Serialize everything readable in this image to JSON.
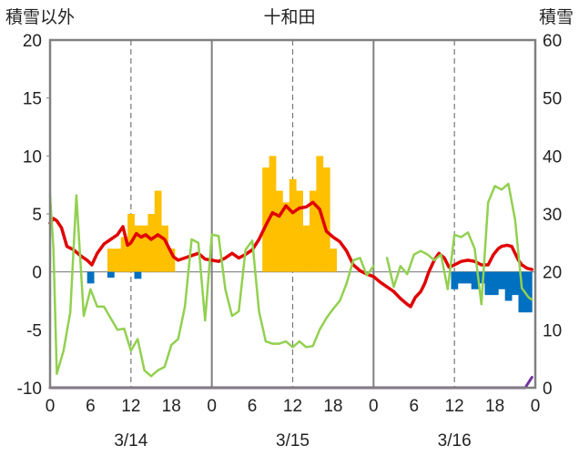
{
  "chart_data": {
    "type": "bar",
    "title": "十和田",
    "y_left_label": "積雪以外",
    "y_right_label": "積雪",
    "y_left_ticks": [
      "20",
      "15",
      "10",
      "5",
      "0",
      "-5",
      "-10"
    ],
    "y_right_ticks": [
      "60",
      "50",
      "40",
      "30",
      "20",
      "10",
      "0"
    ],
    "x_tick_labels": [
      "0",
      "6",
      "12",
      "18",
      "0",
      "6",
      "12",
      "18",
      "0",
      "6",
      "12",
      "18",
      "0"
    ],
    "date_labels": [
      "3/14",
      "3/15",
      "3/16"
    ],
    "ylim_left": [
      -10,
      20
    ],
    "ylim_right": [
      0,
      60
    ],
    "x_range_hours": [
      0,
      72
    ],
    "grid": "dashed vertical at 12h, solid vertical at day boundaries",
    "colors": {
      "snowfall_bars": "#FFC000",
      "depth_change_bars": "#0070C0",
      "temperature_line": "#E00000",
      "humidity_line": "#92D050",
      "snow_depth_line": "#7030A0",
      "frame": "#808080"
    },
    "series": [
      {
        "kind": "bar",
        "axis": "left",
        "color": "#FFC000",
        "points": [
          [
            9,
            2
          ],
          [
            10,
            2
          ],
          [
            11,
            3
          ],
          [
            12,
            5
          ],
          [
            13,
            4
          ],
          [
            14,
            4
          ],
          [
            15,
            5
          ],
          [
            16,
            7
          ],
          [
            17,
            4
          ],
          [
            18,
            2
          ],
          [
            32,
            9
          ],
          [
            33,
            10
          ],
          [
            34,
            7
          ],
          [
            35,
            6
          ],
          [
            36,
            8
          ],
          [
            37,
            7
          ],
          [
            38,
            4
          ],
          [
            39,
            7
          ],
          [
            40,
            10
          ],
          [
            41,
            9
          ],
          [
            42,
            2
          ]
        ]
      },
      {
        "kind": "bar",
        "axis": "left",
        "color": "#0070C0",
        "points": [
          [
            6,
            -1
          ],
          [
            9,
            -0.5
          ],
          [
            13,
            -0.6
          ],
          [
            60,
            -1.5
          ],
          [
            61,
            -1
          ],
          [
            62,
            -1
          ],
          [
            63,
            -1.5
          ],
          [
            64,
            -1
          ],
          [
            65,
            -2
          ],
          [
            66,
            -2
          ],
          [
            67,
            -1.5
          ],
          [
            68,
            -2.5
          ],
          [
            69,
            -2
          ],
          [
            70,
            -3.5
          ],
          [
            71,
            -3.5
          ]
        ]
      },
      {
        "kind": "line",
        "axis": "left",
        "color": "#E00000",
        "points": [
          [
            0,
            4.2
          ],
          [
            0.5,
            4.6
          ],
          [
            1,
            4.4
          ],
          [
            1.7,
            3.8
          ],
          [
            2.5,
            2.2
          ],
          [
            3.5,
            1.9
          ],
          [
            4.5,
            1.4
          ],
          [
            5.5,
            1.0
          ],
          [
            6.2,
            0.6
          ],
          [
            7,
            1.6
          ],
          [
            8,
            2.4
          ],
          [
            9,
            2.8
          ],
          [
            10,
            3.2
          ],
          [
            10.8,
            3.9
          ],
          [
            11.5,
            2.3
          ],
          [
            12,
            2.5
          ],
          [
            12.8,
            3.3
          ],
          [
            13.5,
            3.0
          ],
          [
            14.2,
            3.2
          ],
          [
            15,
            2.8
          ],
          [
            16,
            3.2
          ],
          [
            17,
            2.8
          ],
          [
            17.6,
            2.1
          ],
          [
            18.3,
            1.3
          ],
          [
            19,
            1.0
          ],
          [
            20,
            1.2
          ],
          [
            21,
            1.4
          ],
          [
            22,
            1.6
          ],
          [
            23,
            1.1
          ],
          [
            24,
            1.0
          ],
          [
            25,
            0.9
          ],
          [
            26,
            1.2
          ],
          [
            27,
            1.6
          ],
          [
            28,
            1.2
          ],
          [
            29,
            1.5
          ],
          [
            30,
            1.9
          ],
          [
            31,
            2.8
          ],
          [
            32,
            4.0
          ],
          [
            33,
            5.1
          ],
          [
            34,
            4.8
          ],
          [
            35,
            5.7
          ],
          [
            36,
            5.1
          ],
          [
            37,
            5.5
          ],
          [
            38,
            5.6
          ],
          [
            39,
            6.0
          ],
          [
            40,
            5.4
          ],
          [
            41,
            3.5
          ],
          [
            42,
            3.0
          ],
          [
            43,
            2.6
          ],
          [
            44,
            1.8
          ],
          [
            45,
            0.6
          ],
          [
            46,
            0.1
          ],
          [
            47,
            -0.2
          ],
          [
            48,
            -0.4
          ],
          [
            49,
            -0.9
          ],
          [
            50,
            -1.3
          ],
          [
            51,
            -1.7
          ],
          [
            52,
            -2.3
          ],
          [
            53,
            -2.8
          ],
          [
            53.5,
            -3.0
          ],
          [
            54.2,
            -2.2
          ],
          [
            55,
            -1.7
          ],
          [
            55.6,
            -1.0
          ],
          [
            56.2,
            0.0
          ],
          [
            57,
            1.0
          ],
          [
            57.7,
            1.6
          ],
          [
            58.5,
            1.2
          ],
          [
            59.2,
            0.4
          ],
          [
            60,
            0.6
          ],
          [
            61,
            0.9
          ],
          [
            62,
            1.0
          ],
          [
            63,
            0.9
          ],
          [
            64,
            0.6
          ],
          [
            65,
            0.6
          ],
          [
            65.8,
            1.5
          ],
          [
            66.5,
            2.0
          ],
          [
            67,
            2.2
          ],
          [
            67.8,
            2.3
          ],
          [
            68.5,
            2.2
          ],
          [
            69,
            1.6
          ],
          [
            69.5,
            1.0
          ],
          [
            70,
            0.6
          ],
          [
            70.8,
            0.3
          ],
          [
            71.5,
            0.2
          ]
        ]
      },
      {
        "kind": "line",
        "axis": "left",
        "color": "#92D050",
        "points": [
          [
            0,
            6.6
          ],
          [
            0.5,
            2.0
          ],
          [
            1,
            -8.8
          ],
          [
            2,
            -6.8
          ],
          [
            3,
            -3.5
          ],
          [
            3.9,
            6.6
          ],
          [
            5,
            -3.8
          ],
          [
            6,
            -1.5
          ],
          [
            7,
            -3.0
          ],
          [
            8,
            -3.0
          ],
          [
            9,
            -4.0
          ],
          [
            10,
            -5.0
          ],
          [
            11,
            -4.9
          ],
          [
            12,
            -6.8
          ],
          [
            13,
            -5.8
          ],
          [
            14,
            -8.5
          ],
          [
            15,
            -9.0
          ],
          [
            16,
            -8.5
          ],
          [
            17,
            -8.2
          ],
          [
            18,
            -6.3
          ],
          [
            19,
            -5.8
          ],
          [
            20,
            -3.0
          ],
          [
            21,
            2.8
          ],
          [
            22,
            2.5
          ],
          [
            23,
            -4.2
          ],
          [
            24,
            3.2
          ],
          [
            25,
            3.1
          ],
          [
            26,
            -1.5
          ],
          [
            27,
            -3.8
          ],
          [
            28,
            -3.4
          ],
          [
            29,
            1.9
          ],
          [
            30,
            2.7
          ],
          [
            31,
            -3.4
          ],
          [
            32,
            -6.0
          ],
          [
            33,
            -6.2
          ],
          [
            34,
            -6.2
          ],
          [
            35,
            -6.0
          ],
          [
            36,
            -6.5
          ],
          [
            37,
            -6.0
          ],
          [
            38,
            -6.5
          ],
          [
            39,
            -6.4
          ],
          [
            40,
            -5.0
          ],
          [
            41,
            -4.0
          ],
          [
            42,
            -3.2
          ],
          [
            43,
            -2.5
          ],
          [
            44,
            -1.0
          ],
          [
            45,
            1.0
          ],
          [
            46,
            1.2
          ],
          [
            47,
            -0.3
          ],
          [
            48,
            0.5
          ],
          [
            null,
            null
          ],
          [
            50,
            1.2
          ],
          [
            51,
            -1.3
          ],
          [
            52,
            0.5
          ],
          [
            53,
            -0.2
          ],
          [
            54,
            1.5
          ],
          [
            55,
            1.8
          ],
          [
            56,
            1.5
          ],
          [
            57,
            1.0
          ],
          [
            58,
            1.5
          ],
          [
            59,
            -1.5
          ],
          [
            60,
            3.2
          ],
          [
            61,
            3.0
          ],
          [
            62,
            3.4
          ],
          [
            63,
            2.0
          ],
          [
            64,
            -2.8
          ],
          [
            65,
            6.0
          ],
          [
            66,
            7.4
          ],
          [
            67,
            7.1
          ],
          [
            68,
            7.6
          ],
          [
            69,
            4.5
          ],
          [
            70,
            -1.4
          ],
          [
            71,
            -2.2
          ],
          [
            71.5,
            -2.4
          ]
        ]
      },
      {
        "kind": "line",
        "axis": "right",
        "color": "#7030A0",
        "points": [
          [
            0,
            0
          ],
          [
            70.5,
            0
          ],
          [
            71.5,
            1.8
          ]
        ]
      }
    ]
  }
}
